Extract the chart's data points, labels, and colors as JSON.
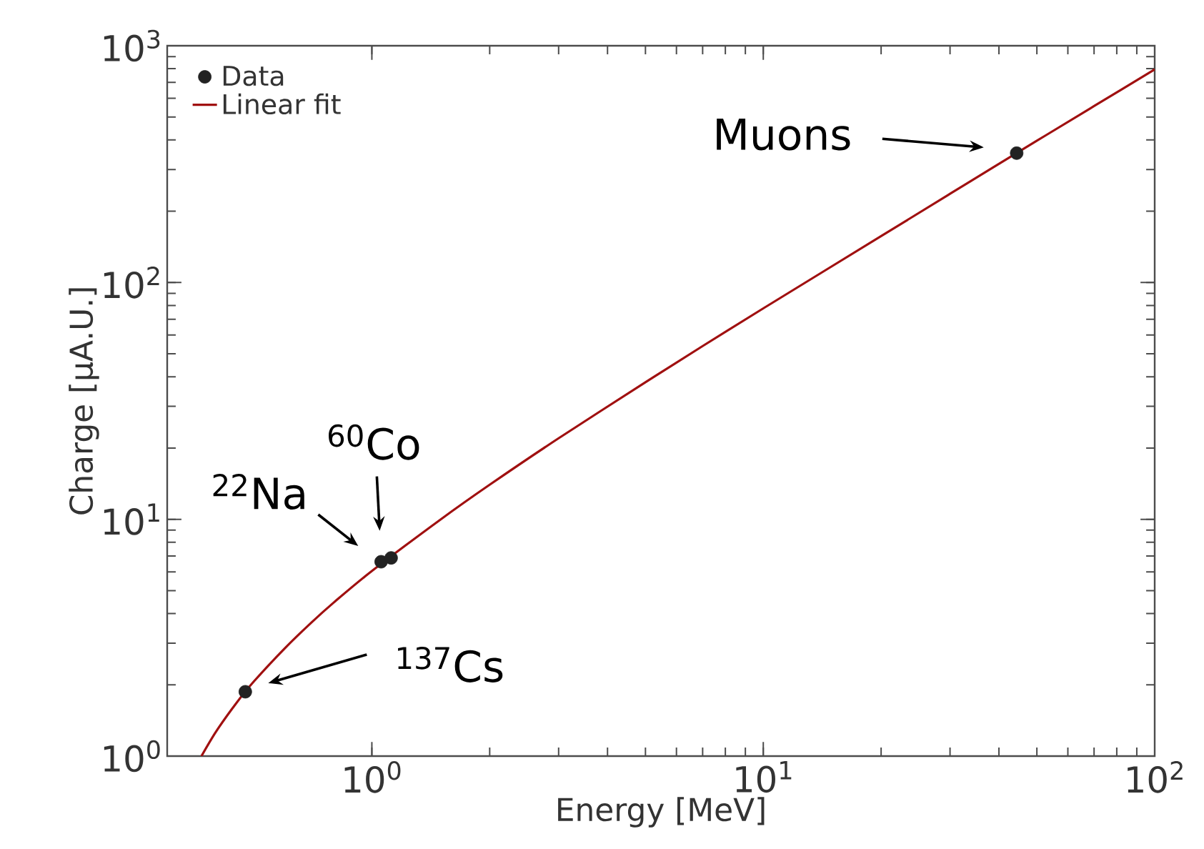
{
  "chart_data": {
    "type": "scatter",
    "xlabel": "Energy [MeV]",
    "ylabel": "Charge [µA.U.]",
    "log": "xy",
    "legend": "top left",
    "xlim": [
      0.3,
      100
    ],
    "ylim": [
      1,
      1000
    ],
    "xticks": [
      {
        "value": 1,
        "label": "10$^{0}$"
      },
      {
        "value": 10,
        "label": "10$^{1}$"
      },
      {
        "value": 100,
        "label": "10$^{2}$"
      }
    ],
    "yticks": [
      {
        "value": 1,
        "label": "10$^{0}$"
      },
      {
        "value": 10,
        "label": "10$^{1}$"
      },
      {
        "value": 100,
        "label": "10$^{2}$"
      },
      {
        "value": 1000,
        "label": "10$^{3}$"
      }
    ],
    "series": [
      {
        "name": "Data",
        "color": "#222222",
        "marker": "circle",
        "x": [
          0.475,
          1.056,
          1.12,
          44.4
        ],
        "values": [
          1.87,
          6.62,
          6.87,
          352
        ]
      },
      {
        "name": "Linear fit",
        "type": "line",
        "color": "#a01010",
        "x": [
          0.367,
          0.4,
          0.45,
          0.5,
          0.6,
          0.7,
          0.8,
          1,
          1.5,
          2,
          3,
          5,
          7,
          10,
          20,
          30,
          50,
          70,
          100
        ],
        "values": [
          1.0,
          1.27,
          1.67,
          2.07,
          2.86,
          3.66,
          4.46,
          6.05,
          10.0,
          14.0,
          22.0,
          37.9,
          53.9,
          77.8,
          157,
          237,
          397,
          556,
          795
        ]
      }
    ],
    "annotations": [
      "Muons",
      {
        "text": "$^{22}$Na",
        "x": 1.056,
        "y": 6.62
      },
      {
        "text": "$^{60}$Co",
        "x": 1.12,
        "y": 6.87
      },
      "$^{137}$Cs"
    ]
  }
}
